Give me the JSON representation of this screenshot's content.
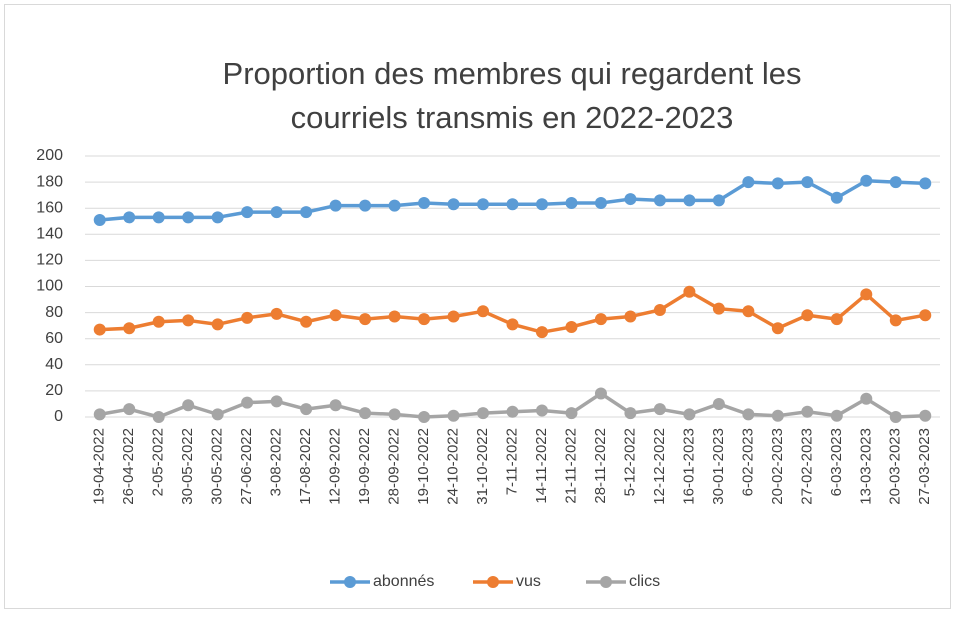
{
  "chart_data": {
    "type": "line",
    "title": [
      "Proportion des membres qui regardent les",
      "courriels transmis en 2022-2023"
    ],
    "categories": [
      "19-04-2022",
      "26-04-2022",
      "2-05-2022",
      "30-05-2022",
      "30-05-2022",
      "27-06-2022",
      "3-08-2022",
      "17-08-2022",
      "12-09-2022",
      "19-09-2022",
      "28-09-2022",
      "19-10-2022",
      "24-10-2022",
      "31-10-2022",
      "7-11-2022",
      "14-11-2022",
      "21-11-2022",
      "28-11-2022",
      "5-12-2022",
      "12-12-2022",
      "16-01-2023",
      "30-01-2023",
      "6-02-2023",
      "20-02-2023",
      "27-02-2023",
      "6-03-2023",
      "13-03-2023",
      "20-03-2023",
      "27-03-2023"
    ],
    "series": [
      {
        "name": "abonnés",
        "color": "#5b9bd5",
        "values": [
          151,
          153,
          153,
          153,
          153,
          157,
          157,
          157,
          162,
          162,
          162,
          164,
          163,
          163,
          163,
          163,
          164,
          164,
          167,
          166,
          166,
          166,
          180,
          179,
          180,
          168,
          181,
          180,
          179
        ]
      },
      {
        "name": "vus",
        "color": "#ed7d31",
        "values": [
          67,
          68,
          73,
          74,
          71,
          76,
          79,
          73,
          78,
          75,
          77,
          75,
          77,
          81,
          71,
          65,
          69,
          75,
          77,
          82,
          96,
          83,
          81,
          68,
          78,
          75,
          94,
          74,
          78
        ]
      },
      {
        "name": "clics",
        "color": "#a5a5a5",
        "values": [
          2,
          6,
          0,
          9,
          2,
          11,
          12,
          6,
          9,
          3,
          2,
          0,
          1,
          3,
          4,
          5,
          3,
          18,
          3,
          6,
          2,
          10,
          2,
          1,
          4,
          1,
          14,
          0,
          1
        ]
      }
    ],
    "ylim": [
      0,
      200
    ],
    "yticks": [
      0,
      20,
      40,
      60,
      80,
      100,
      120,
      140,
      160,
      180,
      200
    ],
    "grid": true,
    "legend": "bottom"
  }
}
